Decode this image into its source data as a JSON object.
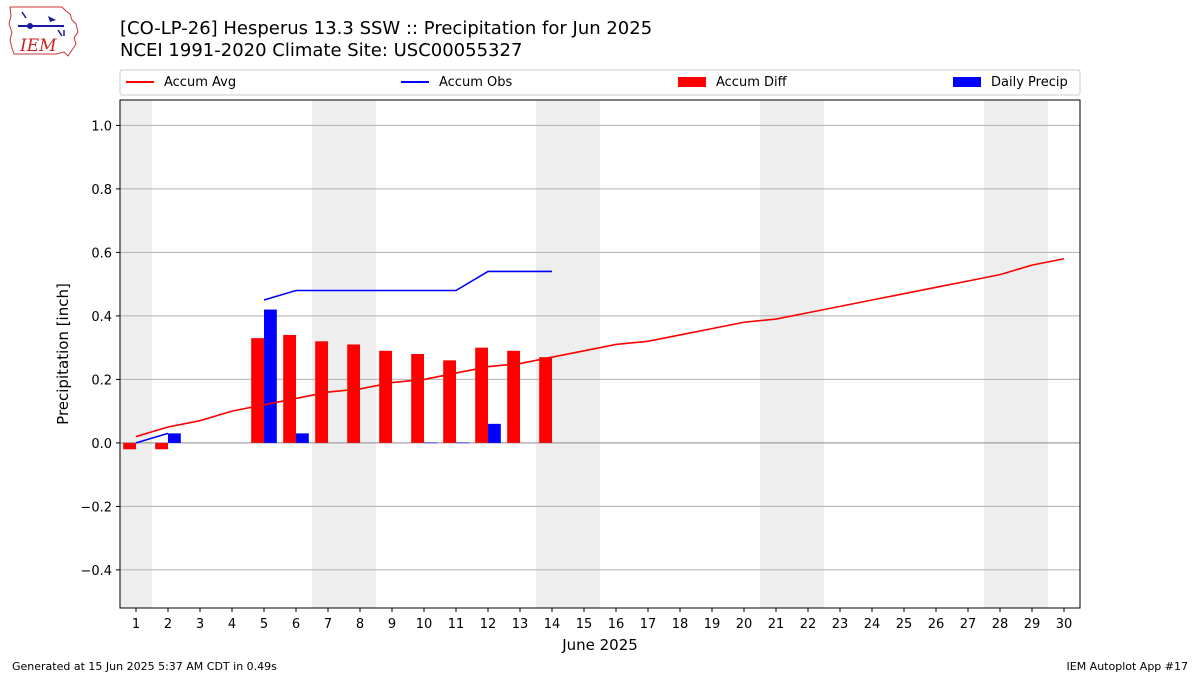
{
  "header": {
    "logo_text": "IEM",
    "title_line1": "[CO-LP-26] Hesperus 13.3 SSW :: Precipitation for Jun 2025",
    "title_line2": "NCEI 1991-2020 Climate Site: USC00055327"
  },
  "footer": {
    "left": "Generated at 15 Jun 2025 5:37 AM CDT in 0.49s",
    "right": "IEM Autoplot App #17"
  },
  "chart_data": {
    "type": "bar",
    "xlabel": "June 2025",
    "ylabel": "Precipitation [inch]",
    "ylim": [
      -0.52,
      1.08
    ],
    "yticks": [
      -0.4,
      -0.2,
      0.0,
      0.2,
      0.4,
      0.6,
      0.8,
      1.0
    ],
    "ytick_labels": [
      "−0.4",
      "−0.2",
      "0.0",
      "0.2",
      "0.4",
      "0.6",
      "0.8",
      "1.0"
    ],
    "xlim": [
      0.5,
      30.5
    ],
    "x": [
      1,
      2,
      3,
      4,
      5,
      6,
      7,
      8,
      9,
      10,
      11,
      12,
      13,
      14,
      15,
      16,
      17,
      18,
      19,
      20,
      21,
      22,
      23,
      24,
      25,
      26,
      27,
      28,
      29,
      30
    ],
    "grid": true,
    "legend_position": "top",
    "weekend_shading": [
      [
        0.5,
        1.5
      ],
      [
        6.5,
        8.5
      ],
      [
        13.5,
        15.5
      ],
      [
        20.5,
        22.5
      ],
      [
        27.5,
        29.5
      ]
    ],
    "weekend_color": "#eeeeee",
    "series": [
      {
        "name": "Accum Avg",
        "kind": "line",
        "color": "#ff0000",
        "x": [
          1,
          2,
          3,
          4,
          5,
          6,
          7,
          8,
          9,
          10,
          11,
          12,
          13,
          14,
          15,
          16,
          17,
          18,
          19,
          20,
          21,
          22,
          23,
          24,
          25,
          26,
          27,
          28,
          29,
          30
        ],
        "values": [
          0.02,
          0.05,
          0.07,
          0.1,
          0.12,
          0.14,
          0.16,
          0.17,
          0.19,
          0.2,
          0.22,
          0.24,
          0.25,
          0.27,
          0.29,
          0.31,
          0.32,
          0.34,
          0.36,
          0.38,
          0.39,
          0.41,
          0.43,
          0.45,
          0.47,
          0.49,
          0.51,
          0.53,
          0.56,
          0.58
        ]
      },
      {
        "name": "Accum Obs",
        "kind": "line",
        "color": "#0000ff",
        "x": [
          1,
          2
        ],
        "values": [
          0.0,
          0.03
        ],
        "x2": [
          5,
          6,
          7,
          8,
          9,
          10,
          11,
          12,
          13,
          14
        ],
        "values2": [
          0.45,
          0.48,
          0.48,
          0.48,
          0.48,
          0.48,
          0.48,
          0.54,
          0.54,
          0.54
        ]
      },
      {
        "name": "Accum Diff",
        "kind": "bar",
        "color": "#ff0000",
        "x": [
          1,
          2,
          5,
          6,
          7,
          8,
          9,
          10,
          11,
          12,
          13,
          14
        ],
        "values": [
          -0.02,
          -0.02,
          0.33,
          0.34,
          0.32,
          0.31,
          0.29,
          0.28,
          0.26,
          0.3,
          0.29,
          0.27
        ]
      },
      {
        "name": "Daily Precip",
        "kind": "bar",
        "color": "#0000ff",
        "x": [
          2,
          5,
          6,
          10,
          11,
          12
        ],
        "values": [
          0.03,
          0.42,
          0.03,
          0.001,
          0.001,
          0.06
        ]
      }
    ]
  }
}
